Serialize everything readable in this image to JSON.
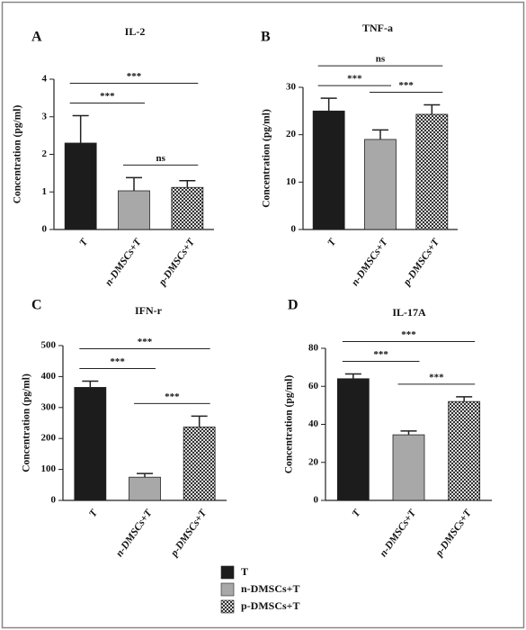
{
  "chart_data": [
    {
      "type": "bar",
      "panel_label": "A",
      "title": "IL-2",
      "y_label": "Concentration (pg/ml)",
      "categories": [
        "T",
        "n-DMSCs+T",
        "p-DMSCs+T"
      ],
      "values": [
        2.3,
        1.03,
        1.12
      ],
      "errors": [
        0.73,
        0.35,
        0.18
      ],
      "ylim": [
        0,
        4
      ],
      "yticks": [
        0,
        1,
        2,
        3,
        4
      ],
      "annotations": [
        {
          "from": 0,
          "to": 1,
          "text": "***"
        },
        {
          "from": 1,
          "to": 2,
          "text": "ns"
        },
        {
          "from": 0,
          "to": 2,
          "text": "***"
        }
      ]
    },
    {
      "type": "bar",
      "panel_label": "B",
      "title": "TNF-a",
      "y_label": "Concentration (pg/ml)",
      "categories": [
        "T",
        "n-DMSCs+T",
        "p-DMSCs+T"
      ],
      "values": [
        25,
        19,
        24.3
      ],
      "errors": [
        2.7,
        2,
        2
      ],
      "ylim": [
        0,
        30
      ],
      "yticks": [
        0,
        10,
        20,
        30
      ],
      "annotations": [
        {
          "from": 0,
          "to": 1,
          "text": "***"
        },
        {
          "from": 1,
          "to": 2,
          "text": "***"
        },
        {
          "from": 0,
          "to": 2,
          "text": "ns"
        }
      ]
    },
    {
      "type": "bar",
      "panel_label": "C",
      "title": "IFN-r",
      "y_label": "Concentration (pg/ml)",
      "categories": [
        "T",
        "n-DMSCs+T",
        "p-DMSCs+T"
      ],
      "values": [
        365,
        75,
        237
      ],
      "errors": [
        20,
        12,
        35
      ],
      "ylim": [
        0,
        500
      ],
      "yticks": [
        0,
        100,
        200,
        300,
        400,
        500
      ],
      "annotations": [
        {
          "from": 0,
          "to": 1,
          "text": "***"
        },
        {
          "from": 1,
          "to": 2,
          "text": "***"
        },
        {
          "from": 0,
          "to": 2,
          "text": "***"
        }
      ]
    },
    {
      "type": "bar",
      "panel_label": "D",
      "title": "IL-17A",
      "y_label": "Concentration (pg/ml)",
      "categories": [
        "T",
        "n-DMSCs+T",
        "p-DMSCs+T"
      ],
      "values": [
        64,
        34.5,
        52
      ],
      "errors": [
        2.5,
        2,
        2.5
      ],
      "ylim": [
        0,
        80
      ],
      "yticks": [
        0,
        20,
        40,
        60,
        80
      ],
      "annotations": [
        {
          "from": 0,
          "to": 1,
          "text": "***"
        },
        {
          "from": 1,
          "to": 2,
          "text": "***"
        },
        {
          "from": 0,
          "to": 2,
          "text": "***"
        }
      ]
    }
  ],
  "legend": {
    "labels": [
      "T",
      "n-DMSCs+T",
      "p-DMSCs+T"
    ],
    "colors": [
      "#1c1c1c",
      "#a8a8a8",
      "#4a4a4a"
    ],
    "patterned": [
      false,
      false,
      true
    ]
  }
}
